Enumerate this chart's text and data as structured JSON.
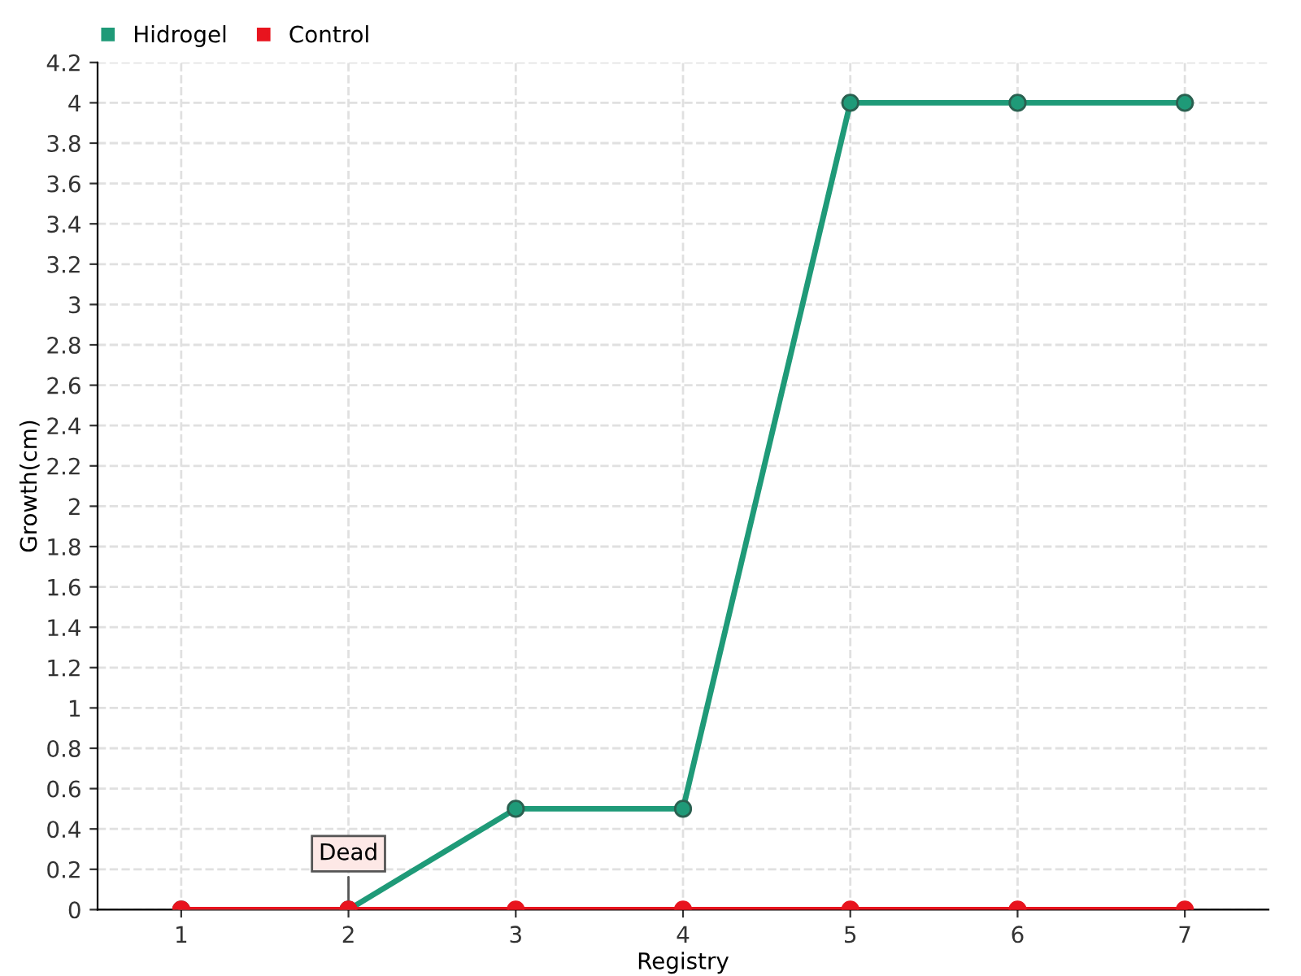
{
  "chart_data": {
    "type": "line",
    "xlabel": "Registry",
    "ylabel": "Growth(cm)",
    "categories": [
      "1",
      "2",
      "3",
      "4",
      "5",
      "6",
      "7"
    ],
    "series": [
      {
        "name": "Hidrogel",
        "color": "#1f9a78",
        "values": [
          0,
          0,
          0.5,
          0.5,
          4,
          4,
          4
        ]
      },
      {
        "name": "Control",
        "color": "#e8141e",
        "values": [
          0,
          0,
          0,
          0,
          0,
          0,
          0
        ]
      }
    ],
    "ylim": [
      0,
      4.2
    ],
    "yticks": [
      0,
      0.2,
      0.4,
      0.6,
      0.8,
      1,
      1.2,
      1.4,
      1.6,
      1.8,
      2,
      2.2,
      2.4,
      2.6,
      2.8,
      3,
      3.2,
      3.4,
      3.6,
      3.8,
      4,
      4.2
    ],
    "annotations": [
      {
        "text": "Dead",
        "x": "2",
        "y": 0
      }
    ],
    "grid": true,
    "legend": "top left",
    "marker": "circle",
    "line_style": "solid"
  }
}
